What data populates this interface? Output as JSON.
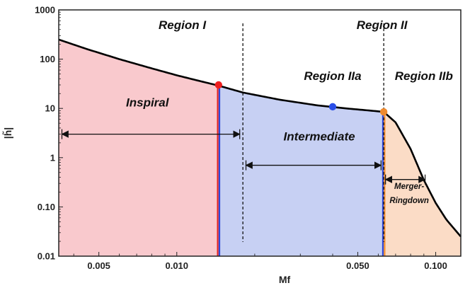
{
  "chart_data": {
    "type": "area",
    "xlabel": "Mf",
    "ylabel": "|h̃|",
    "x_scale": "log",
    "y_scale": "log",
    "xlim": [
      0.0035,
      0.125
    ],
    "ylim": [
      0.01,
      1000
    ],
    "x_ticks": [
      {
        "value": 0.005,
        "label": "0.005"
      },
      {
        "value": 0.01,
        "label": "0.010"
      },
      {
        "value": 0.05,
        "label": "0.050"
      },
      {
        "value": 0.1,
        "label": "0.100"
      }
    ],
    "y_ticks": [
      {
        "value": 0.01,
        "label": "0.01"
      },
      {
        "value": 0.1,
        "label": "0.10"
      },
      {
        "value": 1,
        "label": "1"
      },
      {
        "value": 10,
        "label": "10"
      },
      {
        "value": 100,
        "label": "100"
      },
      {
        "value": 1000,
        "label": "1000"
      }
    ],
    "curve": {
      "x": [
        0.0035,
        0.0045,
        0.006,
        0.008,
        0.01,
        0.012,
        0.0145,
        0.018,
        0.025,
        0.035,
        0.045,
        0.055,
        0.063,
        0.07,
        0.08,
        0.09,
        0.1,
        0.11,
        0.125
      ],
      "y": [
        250,
        160,
        100,
        65,
        47,
        37,
        29,
        21,
        15,
        11.5,
        10,
        9.1,
        8.5,
        5.2,
        1.5,
        0.35,
        0.12,
        0.055,
        0.025
      ]
    },
    "regions": [
      {
        "name": "Inspiral",
        "x_start": 0.0035,
        "x_end": 0.0145,
        "color": "#f9c9cd"
      },
      {
        "name": "Intermediate",
        "x_start": 0.0145,
        "x_end": 0.063,
        "color": "#c7d0f3"
      },
      {
        "name": "Merger-Ringdown",
        "x_start": 0.063,
        "x_end": 0.125,
        "color": "#fbdcc6"
      }
    ],
    "boundary_lines": [
      {
        "x": 0.0145,
        "color": "#e02424",
        "second_color": "#2f48d9"
      },
      {
        "x": 0.063,
        "color": "#2f48d9",
        "second_color": "#ef8a2e"
      }
    ],
    "dashed_lines": [
      0.018,
      0.063
    ],
    "points": [
      {
        "x": 0.0145,
        "y": 30,
        "color": "#ee1f1f"
      },
      {
        "x": 0.04,
        "y": 10.8,
        "color": "#2a4ee8"
      },
      {
        "x": 0.063,
        "y": 8.5,
        "color": "#ef8a2e"
      }
    ],
    "region_labels": [
      {
        "text": "Region I",
        "x": 0.0105,
        "y": 410
      },
      {
        "text": "Region II",
        "x": 0.062,
        "y": 410
      },
      {
        "text": "Region IIa",
        "x": 0.04,
        "y": 38
      },
      {
        "text": "Region IIb",
        "x": 0.09,
        "y": 38
      }
    ],
    "phase_labels": [
      {
        "text": "Inspiral",
        "x": 0.0077,
        "y": 11,
        "arrow_from": 0.0036,
        "arrow_to": 0.0175,
        "arrow_y": 3.0,
        "small": false
      },
      {
        "text": "Intermediate",
        "x": 0.0355,
        "y": 2.25,
        "arrow_from": 0.0185,
        "arrow_to": 0.0615,
        "arrow_y": 0.7,
        "small": false
      },
      {
        "text": "Merger-",
        "x": 0.079,
        "y": 0.23,
        "arrow_from": 0.064,
        "arrow_to": 0.091,
        "arrow_y": 0.36,
        "small": true
      },
      {
        "text": "Ringdown",
        "x": 0.079,
        "y": 0.12,
        "small": true
      }
    ]
  }
}
